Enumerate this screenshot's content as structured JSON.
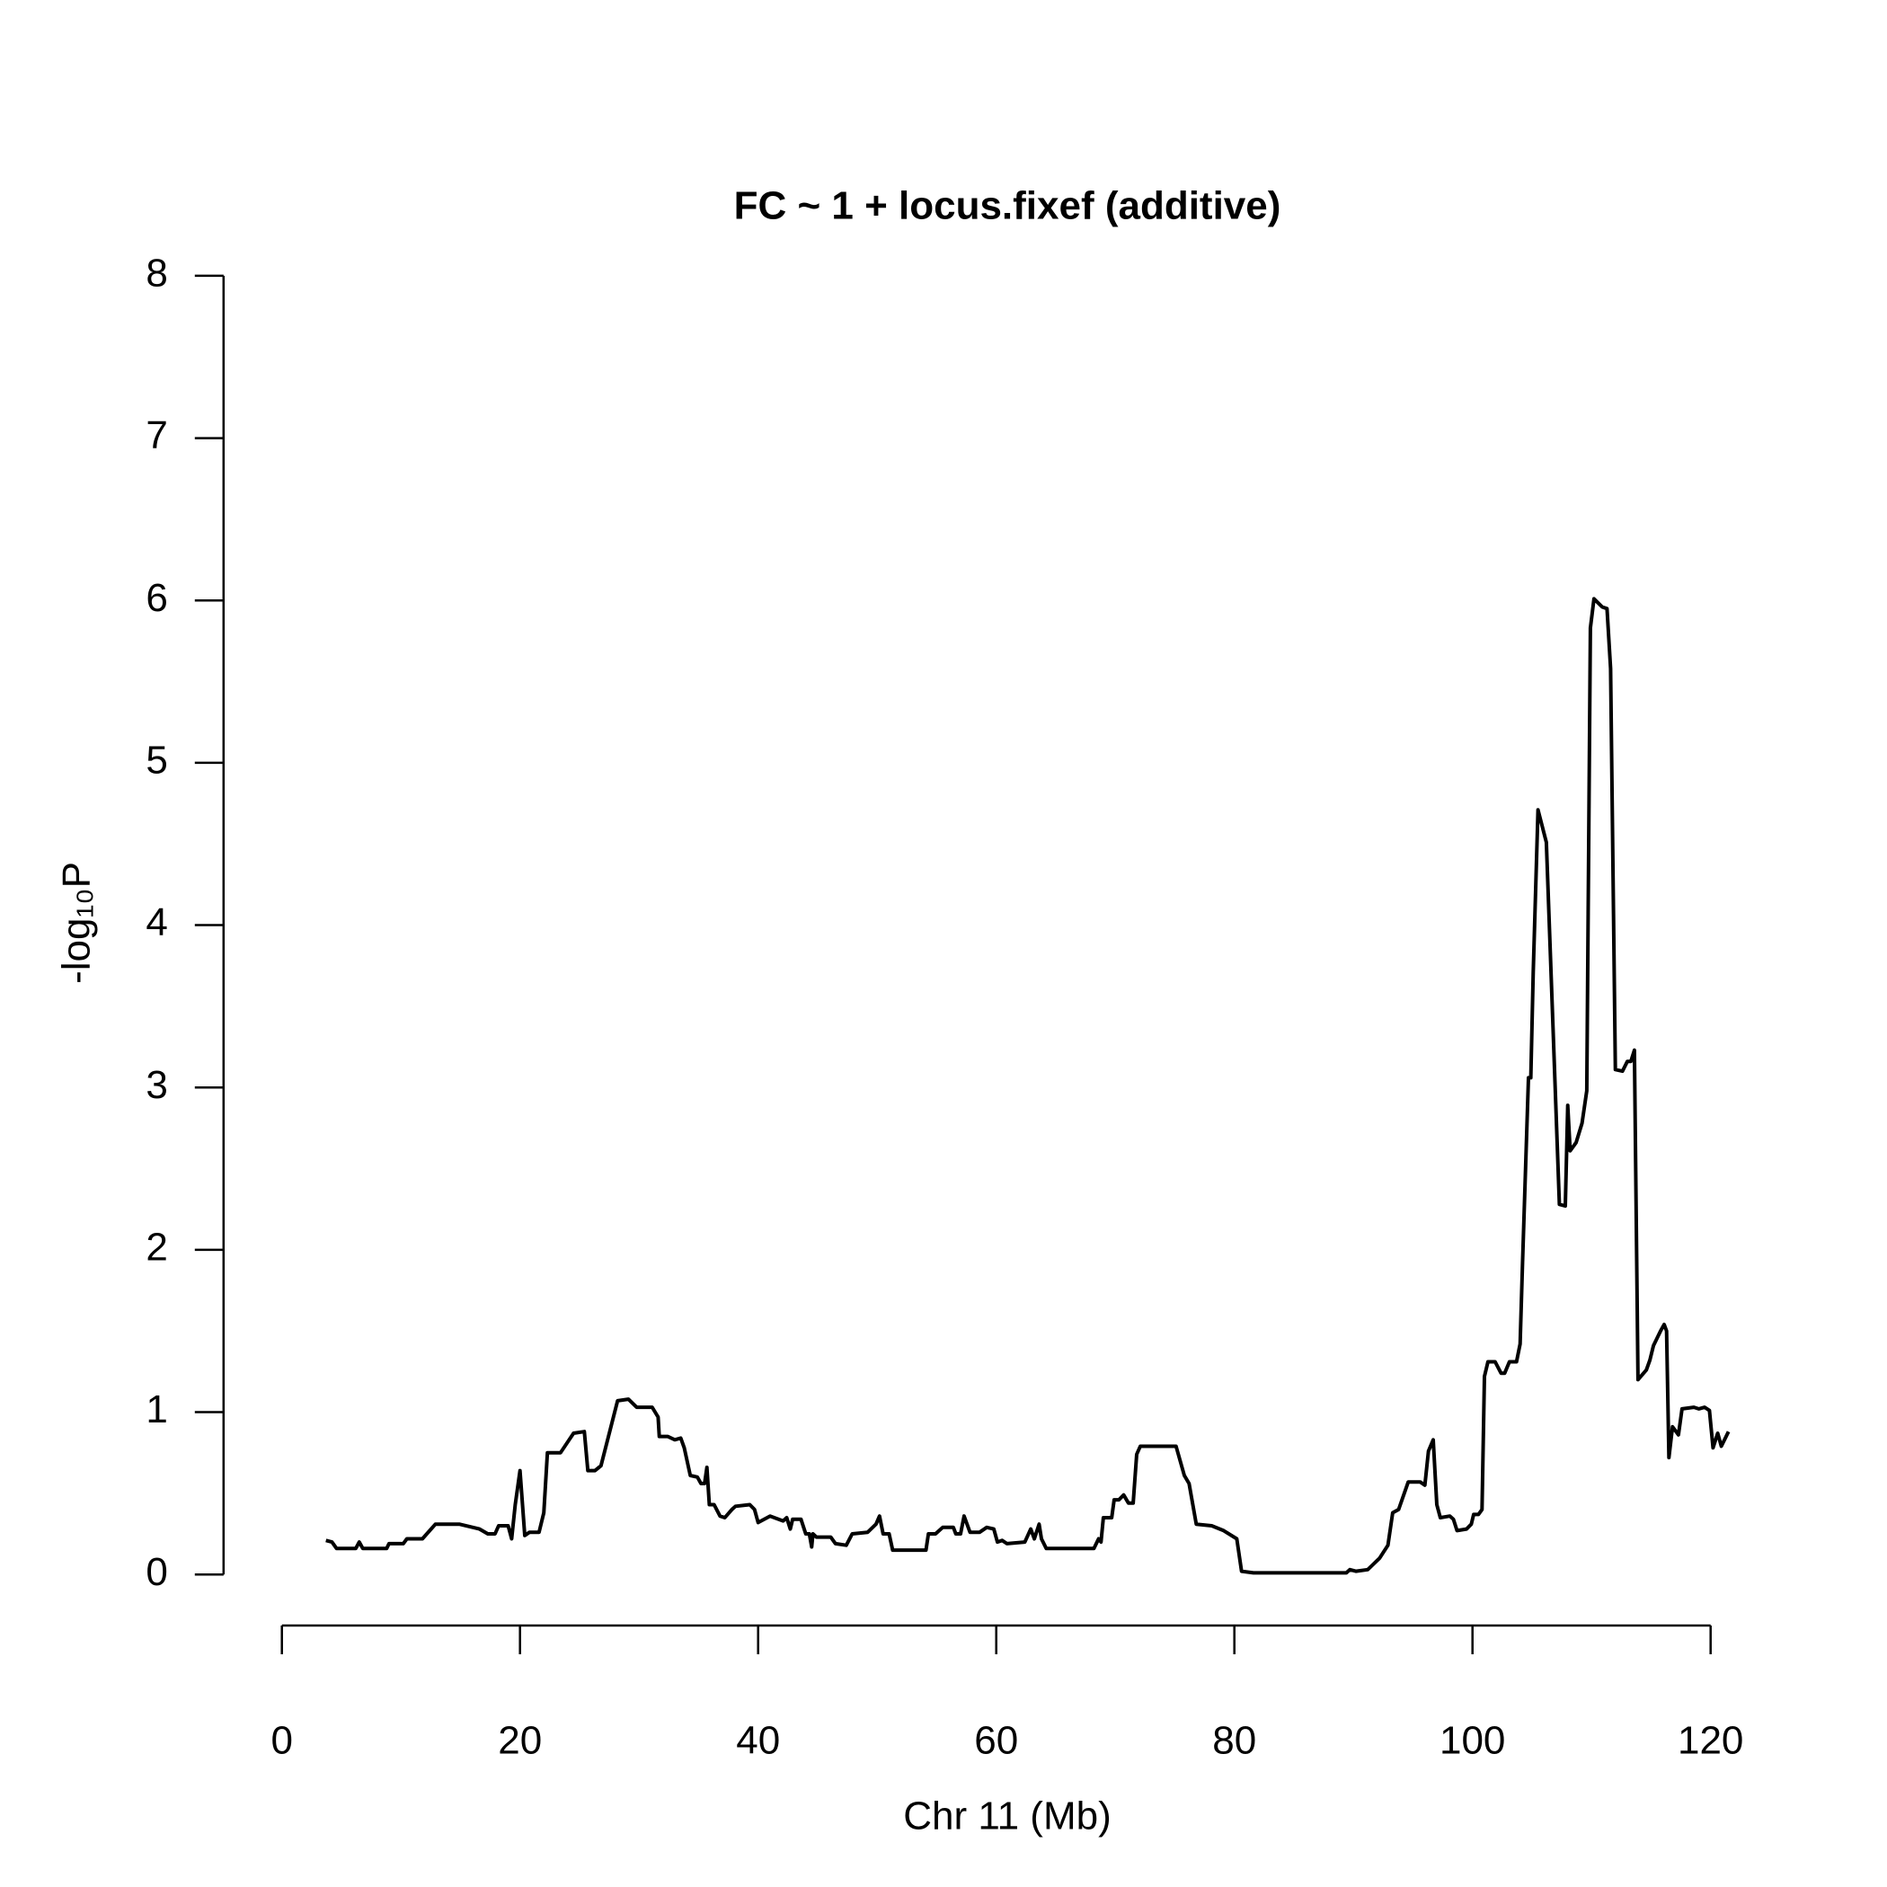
{
  "chart_data": {
    "type": "line",
    "title": "FC ~ 1 + locus.fixef (additive)",
    "xlabel": "Chr 11 (Mb)",
    "ylabel": "-log₁₀P",
    "color": "#000000",
    "xlim": [
      0,
      120
    ],
    "xticks": [
      0,
      20,
      40,
      60,
      80,
      100,
      120
    ],
    "ylim": [
      0,
      8
    ],
    "yticks": [
      0,
      1,
      2,
      3,
      4,
      5,
      6,
      7,
      8
    ],
    "x": [
      3.7,
      4.2,
      4.6,
      6.2,
      6.5,
      6.8,
      8.8,
      9.0,
      10.2,
      10.5,
      11.8,
      12.9,
      14.9,
      16.6,
      17.3,
      17.9,
      18.2,
      19.0,
      19.3,
      19.6,
      20.0,
      20.4,
      20.8,
      21.6,
      22.0,
      22.3,
      23.4,
      24.5,
      25.4,
      25.7,
      26.3,
      26.8,
      28.2,
      29.1,
      29.8,
      31.1,
      31.6,
      31.7,
      32.4,
      33.0,
      33.5,
      33.8,
      34.3,
      34.9,
      35.2,
      35.5,
      35.7,
      35.9,
      36.3,
      36.8,
      37.2,
      37.8,
      38.1,
      39.3,
      39.7,
      40.0,
      41.0,
      42.1,
      42.4,
      42.7,
      42.9,
      43.6,
      44.0,
      44.3,
      44.5,
      44.6,
      44.9,
      46.1,
      46.5,
      47.4,
      47.9,
      49.2,
      49.9,
      50.2,
      50.5,
      51.0,
      51.3,
      51.6,
      54.1,
      54.3,
      54.9,
      55.5,
      56.4,
      56.6,
      57.0,
      57.3,
      57.8,
      58.6,
      59.2,
      59.8,
      60.1,
      60.5,
      60.9,
      62.4,
      62.9,
      63.2,
      63.6,
      63.8,
      64.2,
      65.1,
      68.2,
      68.6,
      68.8,
      69.0,
      69.7,
      69.9,
      70.3,
      70.7,
      71.1,
      71.5,
      71.8,
      72.1,
      75.1,
      75.8,
      76.2,
      76.8,
      78.1,
      79.1,
      80.2,
      80.6,
      81.6,
      89.4,
      89.7,
      90.2,
      91.2,
      92.2,
      92.9,
      93.3,
      93.8,
      94.6,
      95.6,
      96.0,
      96.3,
      96.7,
      97.0,
      97.3,
      98.1,
      98.4,
      98.7,
      99.5,
      99.9,
      100.1,
      100.5,
      100.8,
      101.0,
      101.3,
      101.9,
      102.4,
      102.7,
      103.1,
      103.7,
      104.0,
      104.2,
      104.7,
      104.9,
      105.1,
      105.5,
      106.2,
      107.3,
      107.8,
      108.0,
      108.2,
      108.7,
      109.2,
      109.6,
      109.9,
      110.2,
      110.9,
      111.3,
      111.6,
      112.0,
      112.6,
      113.0,
      113.3,
      113.6,
      113.9,
      114.6,
      114.9,
      115.2,
      115.8,
      116.1,
      116.3,
      116.5,
      116.8,
      117.3,
      117.6,
      118.6,
      119.0,
      119.5,
      119.9,
      120.2,
      120.6,
      120.9,
      121.5
    ],
    "values": [
      0.21,
      0.2,
      0.16,
      0.16,
      0.2,
      0.16,
      0.16,
      0.19,
      0.19,
      0.22,
      0.22,
      0.31,
      0.31,
      0.28,
      0.25,
      0.25,
      0.3,
      0.3,
      0.22,
      0.43,
      0.64,
      0.24,
      0.26,
      0.26,
      0.38,
      0.75,
      0.75,
      0.87,
      0.88,
      0.64,
      0.64,
      0.67,
      1.07,
      1.08,
      1.03,
      1.03,
      0.97,
      0.85,
      0.85,
      0.83,
      0.84,
      0.78,
      0.61,
      0.6,
      0.56,
      0.56,
      0.66,
      0.43,
      0.43,
      0.36,
      0.35,
      0.4,
      0.42,
      0.43,
      0.4,
      0.32,
      0.36,
      0.33,
      0.35,
      0.28,
      0.34,
      0.34,
      0.25,
      0.25,
      0.17,
      0.25,
      0.23,
      0.23,
      0.19,
      0.18,
      0.25,
      0.26,
      0.31,
      0.36,
      0.25,
      0.25,
      0.15,
      0.15,
      0.15,
      0.25,
      0.25,
      0.29,
      0.29,
      0.25,
      0.25,
      0.36,
      0.26,
      0.26,
      0.29,
      0.28,
      0.2,
      0.21,
      0.19,
      0.2,
      0.28,
      0.22,
      0.31,
      0.22,
      0.16,
      0.16,
      0.16,
      0.22,
      0.2,
      0.35,
      0.35,
      0.46,
      0.46,
      0.49,
      0.44,
      0.44,
      0.74,
      0.79,
      0.79,
      0.61,
      0.56,
      0.31,
      0.3,
      0.27,
      0.22,
      0.02,
      0.01,
      0.01,
      0.03,
      0.02,
      0.03,
      0.1,
      0.18,
      0.38,
      0.4,
      0.57,
      0.57,
      0.55,
      0.76,
      0.83,
      0.43,
      0.35,
      0.36,
      0.34,
      0.27,
      0.28,
      0.31,
      0.37,
      0.37,
      0.4,
      1.22,
      1.31,
      1.31,
      1.24,
      1.24,
      1.31,
      1.31,
      1.42,
      1.92,
      3.06,
      3.06,
      3.71,
      4.71,
      4.51,
      2.28,
      2.27,
      2.89,
      2.61,
      2.66,
      2.78,
      2.98,
      5.83,
      6.01,
      5.96,
      5.95,
      5.58,
      3.11,
      3.1,
      3.16,
      3.16,
      3.23,
      1.2,
      1.26,
      1.32,
      1.41,
      1.5,
      1.54,
      1.5,
      0.72,
      0.91,
      0.86,
      1.02,
      1.03,
      1.02,
      1.03,
      1.01,
      0.78,
      0.87,
      0.79,
      0.88
    ]
  }
}
